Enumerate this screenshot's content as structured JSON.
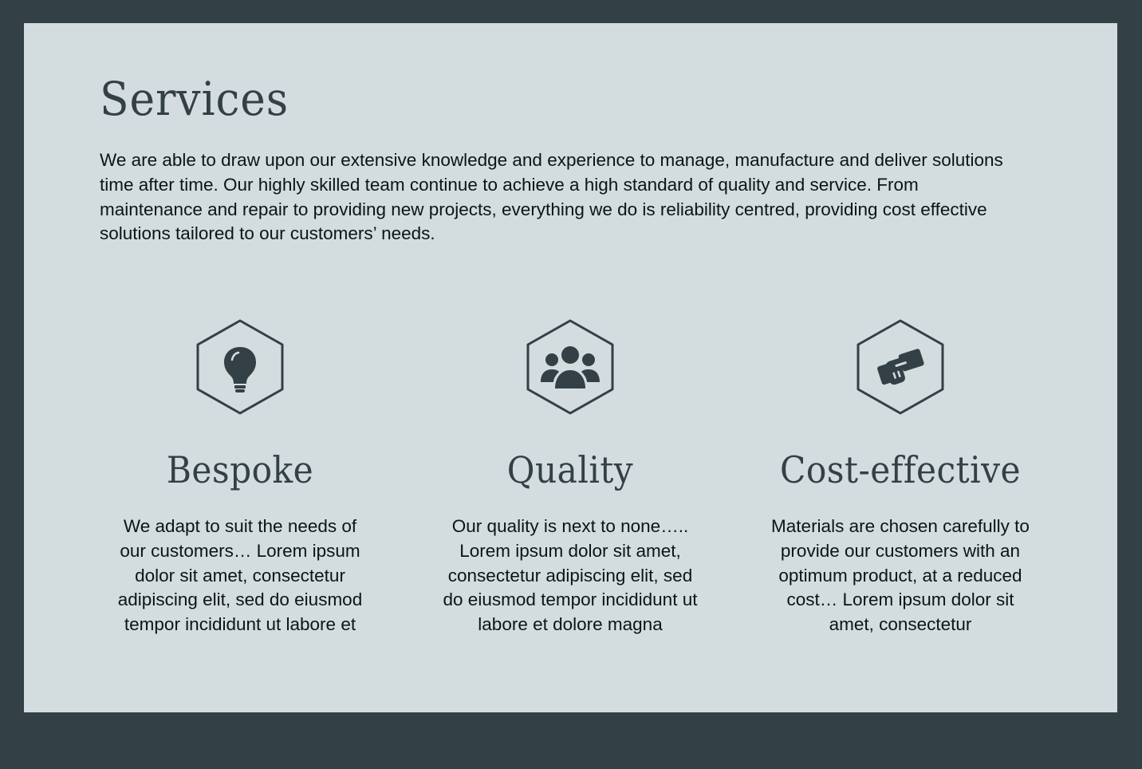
{
  "colors": {
    "frame": "#334046",
    "panel": "#d3dcdf",
    "heading": "#334046",
    "body_text": "#0e1416",
    "icon": "#334046"
  },
  "services": {
    "title": "Services",
    "intro": "We are able to draw upon our extensive knowledge and experience to manage, manufacture and deliver solutions time after time. Our highly skilled team continue to achieve a high standard of quality and service. From maintenance and repair to providing new projects, everything we do is reliability centred, providing cost effective solutions tailored to our customers’ needs."
  },
  "features": [
    {
      "icon": "lightbulb-icon",
      "title": "Bespoke",
      "text": "We adapt to suit the needs of our customers… Lorem ipsum dolor sit amet, consectetur adipiscing elit, sed do eiusmod tempor incididunt ut labore et"
    },
    {
      "icon": "people-group-icon",
      "title": "Quality",
      "text": "Our quality is next to none….. Lorem ipsum dolor sit amet, consectetur adipiscing elit, sed do eiusmod tempor incididunt ut labore et dolore magna"
    },
    {
      "icon": "handshake-icon",
      "title": "Cost-effective",
      "text": "Materials are chosen carefully to provide our customers with an optimum product, at a reduced cost… Lorem ipsum dolor sit amet, consectetur"
    }
  ]
}
